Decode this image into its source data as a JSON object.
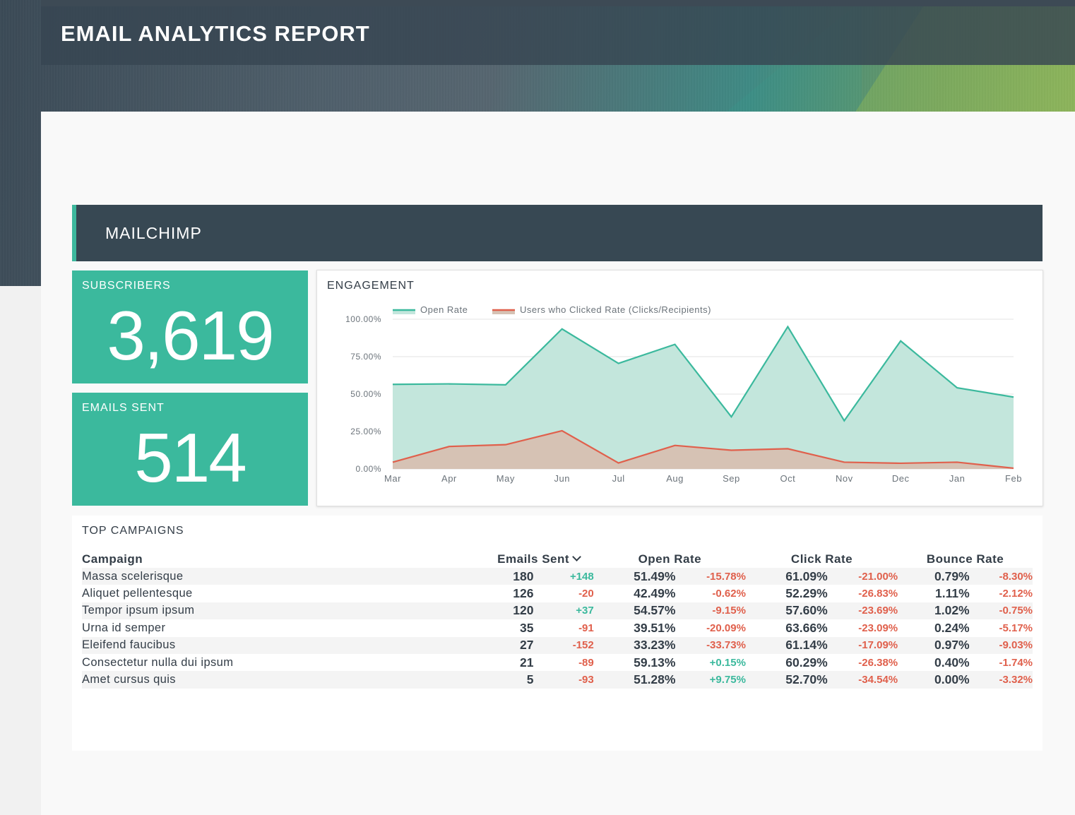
{
  "report_title": "EMAIL ANALYTICS REPORT",
  "section_title": "MAILCHIMP",
  "kpis": {
    "subscribers": {
      "label": "SUBSCRIBERS",
      "value": "3,619"
    },
    "emails_sent": {
      "label": "EMAILS SENT",
      "value": "514"
    }
  },
  "engagement": {
    "title": "ENGAGEMENT"
  },
  "chart_data": {
    "type": "area",
    "title": "ENGAGEMENT",
    "categories": [
      "Mar",
      "Apr",
      "May",
      "Jun",
      "Jul",
      "Aug",
      "Sep",
      "Oct",
      "Nov",
      "Dec",
      "Jan",
      "Feb"
    ],
    "series": [
      {
        "name": "Open Rate",
        "color": "#3bb99d",
        "fill": "#c3e6dc",
        "values": [
          56.5,
          56.8,
          56.2,
          93.5,
          70.5,
          83.2,
          34.8,
          95.0,
          32.2,
          85.5,
          54.2,
          48.0
        ]
      },
      {
        "name": "Users who Clicked Rate (Clicks/Recipients)",
        "color": "#e0604c",
        "fill": "#d6c2b4",
        "values": [
          4.5,
          15.0,
          16.2,
          25.5,
          4.0,
          15.7,
          12.5,
          13.5,
          4.5,
          3.8,
          4.5,
          0.5
        ]
      }
    ],
    "y_ticks": [
      "0.00%",
      "25.00%",
      "50.00%",
      "75.00%",
      "100.00%"
    ],
    "ylim": [
      0,
      100
    ],
    "grid": true,
    "legend": "top-left"
  },
  "campaigns": {
    "title": "TOP CAMPAIGNS",
    "headers": {
      "campaign": "Campaign",
      "emails_sent": "Emails Sent",
      "open_rate": "Open Rate",
      "click_rate": "Click Rate",
      "bounce_rate": "Bounce Rate"
    },
    "rows": [
      {
        "name": "Massa scelerisque",
        "sent": "180",
        "sent_delta": "+148",
        "open": "51.49%",
        "open_delta": "-15.78%",
        "click": "61.09%",
        "click_delta": "-21.00%",
        "bounce": "0.79%",
        "bounce_delta": "-8.30%"
      },
      {
        "name": "Aliquet pellentesque",
        "sent": "126",
        "sent_delta": "-20",
        "open": "42.49%",
        "open_delta": "-0.62%",
        "click": "52.29%",
        "click_delta": "-26.83%",
        "bounce": "1.11%",
        "bounce_delta": "-2.12%"
      },
      {
        "name": "Tempor ipsum ipsum",
        "sent": "120",
        "sent_delta": "+37",
        "open": "54.57%",
        "open_delta": "-9.15%",
        "click": "57.60%",
        "click_delta": "-23.69%",
        "bounce": "1.02%",
        "bounce_delta": "-0.75%"
      },
      {
        "name": "Urna id semper",
        "sent": "35",
        "sent_delta": "-91",
        "open": "39.51%",
        "open_delta": "-20.09%",
        "click": "63.66%",
        "click_delta": "-23.09%",
        "bounce": "0.24%",
        "bounce_delta": "-5.17%"
      },
      {
        "name": "Eleifend faucibus",
        "sent": "27",
        "sent_delta": "-152",
        "open": "33.23%",
        "open_delta": "-33.73%",
        "click": "61.14%",
        "click_delta": "-17.09%",
        "bounce": "0.97%",
        "bounce_delta": "-9.03%"
      },
      {
        "name": "Consectetur nulla dui ipsum",
        "sent": "21",
        "sent_delta": "-89",
        "open": "59.13%",
        "open_delta": "+0.15%",
        "click": "60.29%",
        "click_delta": "-26.38%",
        "bounce": "0.40%",
        "bounce_delta": "-1.74%"
      },
      {
        "name": "Amet cursus quis",
        "sent": "5",
        "sent_delta": "-93",
        "open": "51.28%",
        "open_delta": "+9.75%",
        "click": "52.70%",
        "click_delta": "-34.54%",
        "bounce": "0.00%",
        "bounce_delta": "-3.32%"
      }
    ]
  },
  "colors": {
    "accent": "#3bb99d",
    "negative": "#e0604c",
    "header_dark": "#374853"
  }
}
